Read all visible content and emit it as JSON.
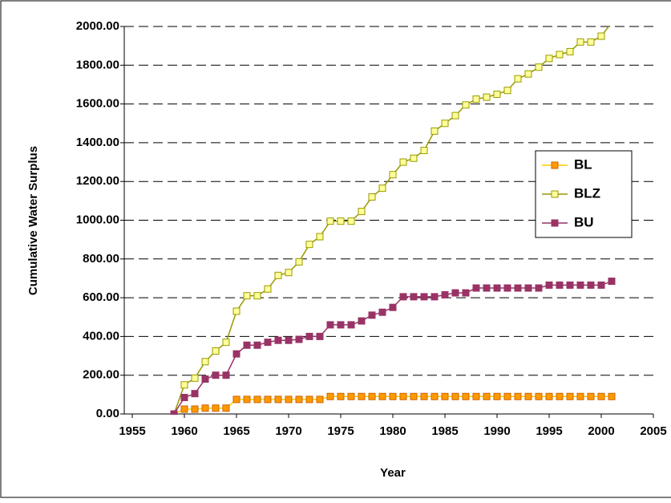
{
  "chart_data": {
    "type": "line",
    "y_label": "Cumulative Water Surplus",
    "x_label": "Year",
    "x": [
      1959,
      1960,
      1961,
      1962,
      1963,
      1964,
      1965,
      1966,
      1967,
      1968,
      1969,
      1970,
      1971,
      1972,
      1973,
      1974,
      1975,
      1976,
      1977,
      1978,
      1979,
      1980,
      1981,
      1982,
      1983,
      1984,
      1985,
      1986,
      1987,
      1988,
      1989,
      1990,
      1991,
      1992,
      1993,
      1994,
      1995,
      1996,
      1997,
      1998,
      1999,
      2000,
      2001
    ],
    "series": [
      {
        "name": "BL",
        "color": "#ffcc00",
        "marker_fill": "#ff9900",
        "marker_stroke": "#cc6600",
        "values": [
          0,
          25,
          25,
          30,
          30,
          30,
          75,
          75,
          75,
          75,
          75,
          75,
          75,
          75,
          75,
          90,
          90,
          90,
          90,
          90,
          90,
          90,
          90,
          90,
          90,
          90,
          90,
          90,
          90,
          90,
          90,
          90,
          90,
          90,
          90,
          90,
          90,
          90,
          90,
          90,
          90,
          90,
          90
        ]
      },
      {
        "name": "BLZ",
        "color": "#999900",
        "marker_fill": "#ffff99",
        "marker_stroke": "#999900",
        "values": [
          0,
          150,
          185,
          270,
          325,
          370,
          530,
          610,
          610,
          645,
          715,
          730,
          785,
          875,
          915,
          995,
          995,
          995,
          1045,
          1120,
          1165,
          1235,
          1300,
          1320,
          1360,
          1460,
          1500,
          1540,
          1595,
          1625,
          1635,
          1650,
          1670,
          1730,
          1755,
          1790,
          1835,
          1855,
          1870,
          1920,
          1920,
          1950,
          2020
        ]
      },
      {
        "name": "BU",
        "color": "#993366",
        "marker_fill": "#993366",
        "marker_stroke": "#993366",
        "values": [
          0,
          85,
          105,
          180,
          200,
          200,
          310,
          355,
          355,
          370,
          380,
          380,
          385,
          400,
          400,
          460,
          460,
          460,
          480,
          510,
          525,
          550,
          605,
          605,
          605,
          605,
          615,
          625,
          625,
          650,
          650,
          650,
          650,
          650,
          650,
          650,
          665,
          665,
          665,
          665,
          665,
          665,
          685
        ]
      }
    ],
    "xlim": [
      1955,
      2005
    ],
    "xticks": [
      1955,
      1960,
      1965,
      1970,
      1975,
      1980,
      1985,
      1990,
      1995,
      2000,
      2005
    ],
    "ylim": [
      0,
      2000
    ],
    "yticks": [
      {
        "value": 0,
        "label": "0.00"
      },
      {
        "value": 200,
        "label": "200.00"
      },
      {
        "value": 400,
        "label": "400.00"
      },
      {
        "value": 600,
        "label": "600.00"
      },
      {
        "value": 800,
        "label": "800.00"
      },
      {
        "value": 1000,
        "label": "1000.00"
      },
      {
        "value": 1200,
        "label": "1200.00"
      },
      {
        "value": 1400,
        "label": "1400.00"
      },
      {
        "value": 1600,
        "label": "1600.00"
      },
      {
        "value": 1800,
        "label": "1800.00"
      },
      {
        "value": 2000,
        "label": "2000.00"
      }
    ],
    "grid": true,
    "legend": "right"
  }
}
